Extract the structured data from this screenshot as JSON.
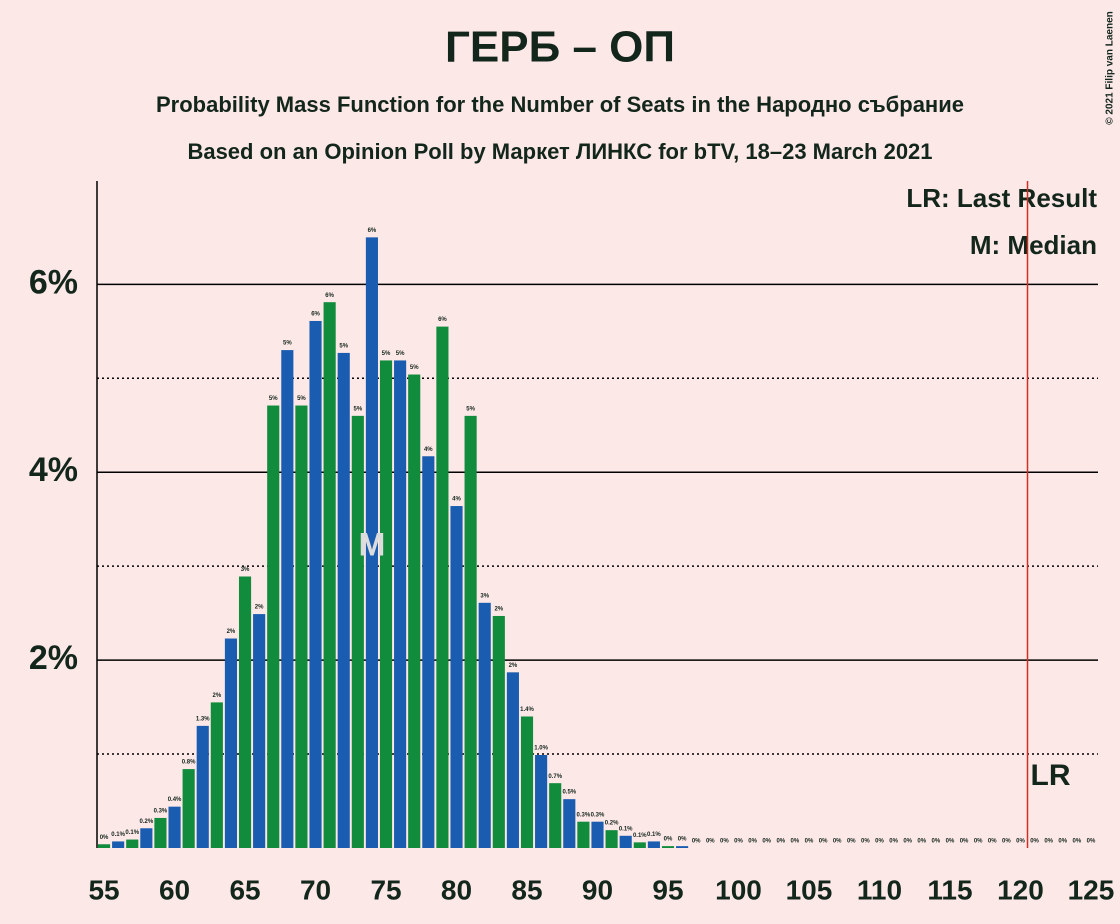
{
  "chart_data": {
    "type": "bar",
    "title": "ГЕРБ – ОП",
    "subtitles": [
      "Probability Mass Function for the Number of Seats in the Народно събрание",
      "Based on an Opinion Poll by Маркет ЛИНКС for bTV, 18–23 March 2021"
    ],
    "credit": "© 2021 Filip van Laenen",
    "x": [
      55,
      56,
      57,
      58,
      59,
      60,
      61,
      62,
      63,
      64,
      65,
      66,
      67,
      68,
      69,
      70,
      71,
      72,
      73,
      74,
      75,
      76,
      77,
      78,
      79,
      80,
      81,
      82,
      83,
      84,
      85,
      86,
      87,
      88,
      89,
      90,
      91,
      92,
      93,
      94,
      95,
      96,
      97,
      98,
      99,
      100,
      101,
      102,
      103,
      104,
      105,
      106,
      107,
      108,
      109,
      110,
      111,
      112,
      113,
      114,
      115,
      116,
      117,
      118,
      119,
      120,
      121,
      122,
      123,
      124,
      125
    ],
    "values": [
      0.04,
      0.07,
      0.09,
      0.21,
      0.32,
      0.44,
      0.84,
      1.3,
      1.55,
      2.23,
      2.89,
      2.49,
      4.71,
      5.3,
      4.71,
      5.61,
      5.81,
      5.27,
      4.6,
      6.5,
      5.19,
      5.19,
      5.04,
      4.17,
      5.55,
      3.64,
      4.6,
      2.61,
      2.47,
      1.87,
      1.4,
      0.99,
      0.69,
      0.52,
      0.28,
      0.28,
      0.19,
      0.13,
      0.06,
      0.07,
      0.02,
      0.02,
      0,
      0,
      0,
      0,
      0,
      0,
      0,
      0,
      0,
      0,
      0,
      0,
      0,
      0,
      0,
      0,
      0,
      0,
      0,
      0,
      0,
      0,
      0,
      0,
      0,
      0,
      0,
      0,
      0
    ],
    "value_labels": [
      "0%",
      "0.1%",
      "0.1%",
      "0.2%",
      "0.3%",
      "0.4%",
      "0.8%",
      "1.3%",
      "2%",
      "2%",
      "3%",
      "2%",
      "5%",
      "5%",
      "5%",
      "6%",
      "6%",
      "5%",
      "5%",
      "6%",
      "5%",
      "5%",
      "5%",
      "4%",
      "6%",
      "4%",
      "5%",
      "3%",
      "2%",
      "2%",
      "1.4%",
      "1.0%",
      "0.7%",
      "0.5%",
      "0.3%",
      "0.3%",
      "0.2%",
      "0.1%",
      "0.1%",
      "0.1%",
      "0%",
      "0%",
      "0%",
      "0%",
      "0%",
      "0%",
      "0%",
      "0%",
      "0%",
      "0%",
      "0%",
      "0%",
      "0%",
      "0%",
      "0%",
      "0%",
      "0%",
      "0%",
      "0%",
      "0%",
      "0%",
      "0%",
      "0%",
      "0%",
      "0%",
      "0%",
      "0%",
      "0%",
      "0%",
      "0%",
      "0%"
    ],
    "bar_colors": [
      "#118c3c",
      "#1a5db0"
    ],
    "xlim": [
      54.5,
      125.5
    ],
    "xticks": [
      55,
      60,
      65,
      70,
      75,
      80,
      85,
      90,
      95,
      100,
      105,
      110,
      115,
      120,
      125
    ],
    "ylim": [
      0,
      7.1
    ],
    "yticks": [
      {
        "value": 2,
        "label": "2%"
      },
      {
        "value": 4,
        "label": "4%"
      },
      {
        "value": 6,
        "label": "6%"
      }
    ],
    "minor_yticks": [
      1,
      3,
      5
    ],
    "median": 74,
    "median_label": "M",
    "last_result": 121,
    "last_result_label": "LR",
    "last_result_color": "#d03020",
    "legend": [
      "LR: Last Result",
      "M: Median"
    ]
  }
}
